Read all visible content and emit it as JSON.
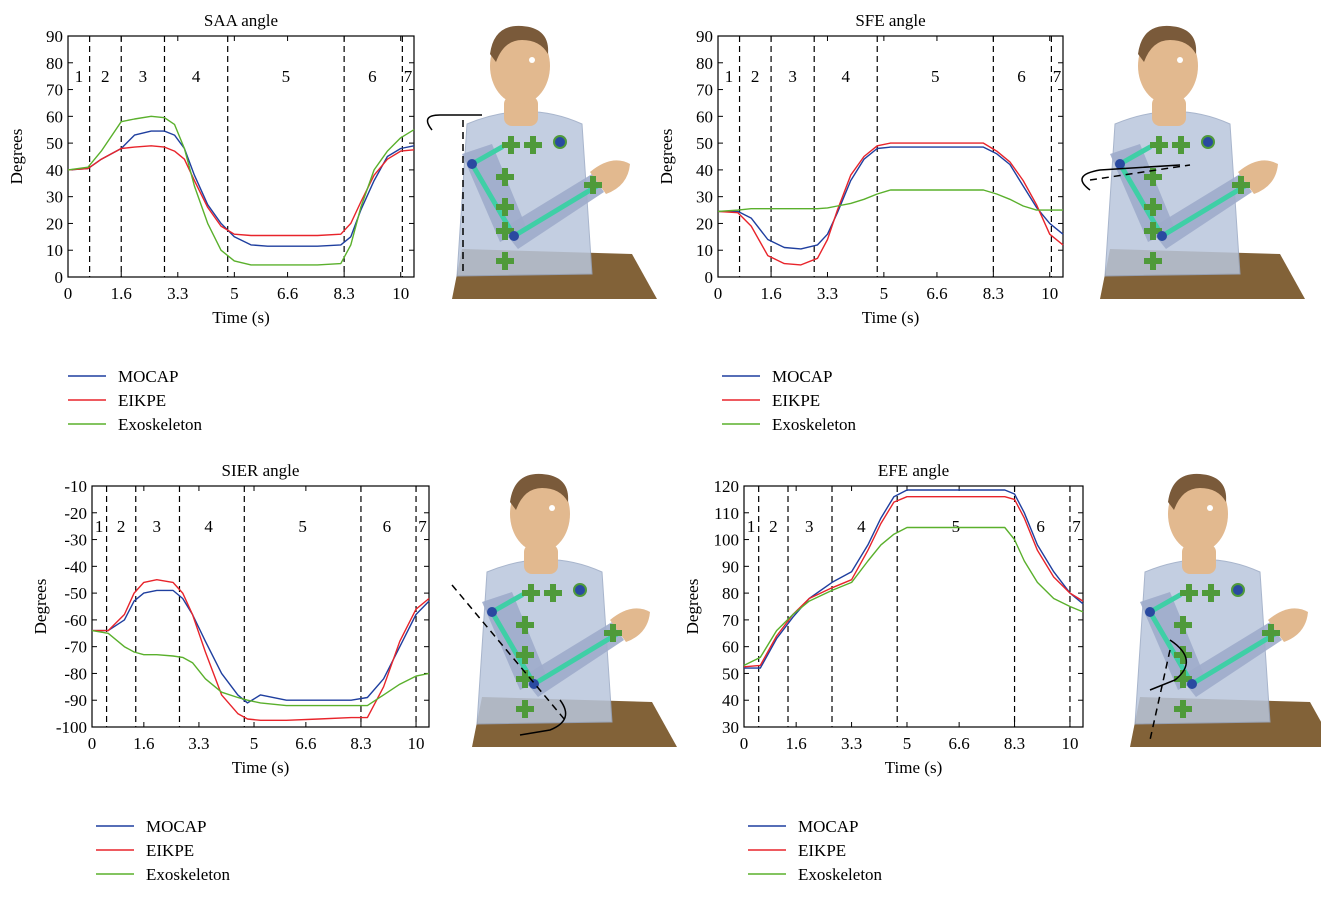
{
  "colors": {
    "mocap": "#1f3f9f",
    "eikpe": "#e8242b",
    "exoskeleton": "#5ab02c",
    "skin": "#e2b98f",
    "hair": "#7a5a3a",
    "torso": "#b9c6dc",
    "marker": "#4f9a3a",
    "link": "#3fcfa6",
    "seat": "#7b5a2d"
  },
  "chart_data": [
    {
      "type": "line",
      "title": "SAA angle",
      "xlabel": "Time (s)",
      "ylabel": "Degrees",
      "xlim": [
        0,
        10.4
      ],
      "ylim": [
        0,
        90
      ],
      "xticks": [
        0,
        1.6,
        3.3,
        5,
        6.6,
        8.3,
        10
      ],
      "xtick_labels": [
        "0",
        "1.6",
        "3.3",
        "5",
        "6.6",
        "8.3",
        "10"
      ],
      "yticks": [
        0,
        10,
        20,
        30,
        40,
        50,
        60,
        70,
        80,
        90
      ],
      "phase_lines": [
        0.65,
        1.6,
        2.9,
        4.8,
        8.3,
        10.05
      ],
      "phase_labels": [
        {
          "text": "1",
          "x": 0.33
        },
        {
          "text": "2",
          "x": 1.12
        },
        {
          "text": "3",
          "x": 2.25
        },
        {
          "text": "4",
          "x": 3.85
        },
        {
          "text": "5",
          "x": 6.55
        },
        {
          "text": "6",
          "x": 9.15
        },
        {
          "text": "7",
          "x": 10.22
        }
      ],
      "series": [
        {
          "name": "MOCAP",
          "x": [
            0,
            0.6,
            1.0,
            1.6,
            2.0,
            2.5,
            2.9,
            3.2,
            3.5,
            3.8,
            4.2,
            4.6,
            5.0,
            5.5,
            6.0,
            6.6,
            7.5,
            8.2,
            8.5,
            8.8,
            9.2,
            9.6,
            10.0,
            10.4
          ],
          "y": [
            40,
            40.5,
            44,
            48,
            53,
            54.5,
            54.5,
            53,
            48,
            38,
            27,
            20,
            15,
            12,
            11.5,
            11.5,
            11.5,
            12,
            15,
            25,
            36,
            45,
            48,
            49
          ]
        },
        {
          "name": "EIKPE",
          "x": [
            0,
            0.6,
            1.0,
            1.6,
            2.0,
            2.5,
            2.9,
            3.2,
            3.5,
            3.8,
            4.2,
            4.6,
            5.0,
            5.5,
            6.0,
            6.6,
            7.5,
            8.2,
            8.5,
            8.8,
            9.2,
            9.6,
            10.0,
            10.4
          ],
          "y": [
            40,
            40.5,
            44,
            48,
            48.5,
            49,
            48.5,
            47,
            44,
            36,
            26,
            19,
            16,
            15.5,
            15.5,
            15.5,
            15.5,
            16,
            20,
            28,
            38,
            44,
            47,
            47.5
          ]
        },
        {
          "name": "Exoskeleton",
          "x": [
            0,
            0.6,
            1.0,
            1.6,
            2.0,
            2.5,
            2.9,
            3.2,
            3.5,
            3.8,
            4.2,
            4.6,
            5.0,
            5.5,
            6.0,
            6.6,
            7.5,
            8.2,
            8.5,
            8.8,
            9.2,
            9.6,
            10.0,
            10.4
          ],
          "y": [
            40,
            41,
            47,
            58,
            59,
            60,
            59.5,
            57,
            48,
            34,
            20,
            10,
            6,
            4.5,
            4.5,
            4.5,
            4.5,
            5,
            12,
            26,
            40,
            47,
            52,
            55
          ]
        }
      ]
    },
    {
      "type": "line",
      "title": "SFE angle",
      "xlabel": "Time (s)",
      "ylabel": "Degrees",
      "xlim": [
        0,
        10.4
      ],
      "ylim": [
        0,
        90
      ],
      "xticks": [
        0,
        1.6,
        3.3,
        5,
        6.6,
        8.3,
        10
      ],
      "xtick_labels": [
        "0",
        "1.6",
        "3.3",
        "5",
        "6.6",
        "8.3",
        "10"
      ],
      "yticks": [
        0,
        10,
        20,
        30,
        40,
        50,
        60,
        70,
        80,
        90
      ],
      "phase_lines": [
        0.65,
        1.6,
        2.9,
        4.8,
        8.3,
        10.05
      ],
      "phase_labels": [
        {
          "text": "1",
          "x": 0.33
        },
        {
          "text": "2",
          "x": 1.12
        },
        {
          "text": "3",
          "x": 2.25
        },
        {
          "text": "4",
          "x": 3.85
        },
        {
          "text": "5",
          "x": 6.55
        },
        {
          "text": "6",
          "x": 9.15
        },
        {
          "text": "7",
          "x": 10.22
        }
      ],
      "series": [
        {
          "name": "MOCAP",
          "x": [
            0,
            0.6,
            1.0,
            1.5,
            2.0,
            2.5,
            3.0,
            3.3,
            3.6,
            4.0,
            4.4,
            4.8,
            5.2,
            6.0,
            7.0,
            8.0,
            8.4,
            8.8,
            9.2,
            9.6,
            10.0,
            10.4
          ],
          "y": [
            24.5,
            24.5,
            22,
            14,
            11,
            10.5,
            12,
            16,
            24,
            36,
            44,
            48,
            48.5,
            48.5,
            48.5,
            48.5,
            46,
            42,
            34,
            26,
            20,
            16
          ]
        },
        {
          "name": "EIKPE",
          "x": [
            0,
            0.6,
            1.0,
            1.5,
            2.0,
            2.5,
            3.0,
            3.3,
            3.6,
            4.0,
            4.4,
            4.8,
            5.2,
            6.0,
            7.0,
            8.0,
            8.4,
            8.8,
            9.2,
            9.6,
            10.0,
            10.4
          ],
          "y": [
            24.5,
            24,
            19,
            8,
            5,
            4.5,
            7,
            14,
            25,
            38,
            45,
            49,
            50,
            50,
            50,
            50,
            47,
            43,
            36,
            27,
            16,
            12
          ]
        },
        {
          "name": "Exoskeleton",
          "x": [
            0,
            0.6,
            1.0,
            1.5,
            2.0,
            2.5,
            3.0,
            3.3,
            3.6,
            4.0,
            4.4,
            4.8,
            5.2,
            6.0,
            7.0,
            8.0,
            8.4,
            8.8,
            9.2,
            9.6,
            10.0,
            10.4
          ],
          "y": [
            24.5,
            25,
            25.5,
            25.5,
            25.5,
            25.5,
            25.5,
            25.8,
            26.5,
            27.5,
            29,
            31,
            32.5,
            32.5,
            32.5,
            32.5,
            31,
            29,
            26.5,
            25,
            25,
            25
          ]
        }
      ]
    },
    {
      "type": "line",
      "title": "SIER angle",
      "xlabel": "Time (s)",
      "ylabel": "Degrees",
      "xlim": [
        0,
        10.4
      ],
      "ylim": [
        -100,
        -10
      ],
      "xticks": [
        0,
        1.6,
        3.3,
        5,
        6.6,
        8.3,
        10
      ],
      "xtick_labels": [
        "0",
        "1.6",
        "3.3",
        "5",
        "6.6",
        "8.3",
        "10"
      ],
      "yticks": [
        -100,
        -90,
        -80,
        -70,
        -60,
        -50,
        -40,
        -30,
        -20,
        -10
      ],
      "phase_lines": [
        0.45,
        1.35,
        2.7,
        4.7,
        8.3,
        10.0
      ],
      "phase_labels": [
        {
          "text": "1",
          "x": 0.22
        },
        {
          "text": "2",
          "x": 0.9
        },
        {
          "text": "3",
          "x": 2.0
        },
        {
          "text": "4",
          "x": 3.6
        },
        {
          "text": "5",
          "x": 6.5
        },
        {
          "text": "6",
          "x": 9.1
        },
        {
          "text": "7",
          "x": 10.2
        }
      ],
      "series": [
        {
          "name": "MOCAP",
          "x": [
            0,
            0.5,
            1.0,
            1.3,
            1.6,
            2.0,
            2.5,
            2.8,
            3.1,
            3.5,
            4.0,
            4.5,
            4.8,
            5.2,
            6.0,
            7.0,
            8.0,
            8.5,
            9.0,
            9.5,
            10.0,
            10.4
          ],
          "y": [
            -64,
            -64,
            -60,
            -53,
            -50,
            -49,
            -49,
            -52,
            -58,
            -68,
            -80,
            -88,
            -91,
            -88,
            -90,
            -90,
            -90,
            -89,
            -82,
            -70,
            -58,
            -53
          ]
        },
        {
          "name": "EIKPE",
          "x": [
            0,
            0.5,
            1.0,
            1.3,
            1.6,
            2.0,
            2.5,
            2.8,
            3.1,
            3.5,
            4.0,
            4.5,
            4.8,
            5.2,
            6.0,
            7.0,
            8.0,
            8.5,
            9.0,
            9.5,
            10.0,
            10.4
          ],
          "y": [
            -64,
            -64,
            -58,
            -50,
            -46,
            -45,
            -46,
            -50,
            -58,
            -72,
            -88,
            -95,
            -97,
            -97.5,
            -97.5,
            -97,
            -96.5,
            -96.5,
            -85,
            -68,
            -56,
            -52
          ]
        },
        {
          "name": "Exoskeleton",
          "x": [
            0,
            0.5,
            1.0,
            1.3,
            1.6,
            2.0,
            2.5,
            2.8,
            3.1,
            3.5,
            4.0,
            4.5,
            4.8,
            5.2,
            6.0,
            7.0,
            8.0,
            8.5,
            9.0,
            9.5,
            10.0,
            10.4
          ],
          "y": [
            -64,
            -65,
            -70,
            -72,
            -73,
            -73,
            -73.5,
            -74,
            -76,
            -82,
            -87,
            -89,
            -90,
            -91,
            -92,
            -92,
            -92,
            -92,
            -88,
            -84,
            -81,
            -80
          ]
        }
      ]
    },
    {
      "type": "line",
      "title": "EFE angle",
      "xlabel": "Time (s)",
      "ylabel": "Degrees",
      "xlim": [
        0,
        10.4
      ],
      "ylim": [
        30,
        120
      ],
      "xticks": [
        0,
        1.6,
        3.3,
        5,
        6.6,
        8.3,
        10
      ],
      "xtick_labels": [
        "0",
        "1.6",
        "3.3",
        "5",
        "6.6",
        "8.3",
        "10"
      ],
      "yticks": [
        30,
        40,
        50,
        60,
        70,
        80,
        90,
        100,
        110,
        120
      ],
      "phase_lines": [
        0.45,
        1.35,
        2.7,
        4.7,
        8.3,
        10.0
      ],
      "phase_labels": [
        {
          "text": "1",
          "x": 0.22
        },
        {
          "text": "2",
          "x": 0.9
        },
        {
          "text": "3",
          "x": 2.0
        },
        {
          "text": "4",
          "x": 3.6
        },
        {
          "text": "5",
          "x": 6.5
        },
        {
          "text": "6",
          "x": 9.1
        },
        {
          "text": "7",
          "x": 10.2
        }
      ],
      "series": [
        {
          "name": "MOCAP",
          "x": [
            0,
            0.5,
            1.0,
            1.5,
            2.0,
            2.7,
            3.3,
            3.8,
            4.2,
            4.6,
            5.0,
            6.0,
            7.0,
            8.0,
            8.3,
            8.6,
            9.0,
            9.5,
            10.0,
            10.4
          ],
          "y": [
            52,
            52,
            63,
            71,
            78,
            84,
            88,
            98,
            108,
            116,
            118.5,
            118.5,
            118.5,
            118.5,
            117,
            110,
            98,
            88,
            80,
            76
          ]
        },
        {
          "name": "EIKPE",
          "x": [
            0,
            0.5,
            1.0,
            1.5,
            2.0,
            2.7,
            3.3,
            3.8,
            4.2,
            4.6,
            5.0,
            6.0,
            7.0,
            8.0,
            8.3,
            8.6,
            9.0,
            9.5,
            10.0,
            10.4
          ],
          "y": [
            52.5,
            53,
            64,
            72,
            78,
            82,
            85,
            96,
            106,
            114,
            116,
            116,
            116,
            116,
            115,
            108,
            96,
            86,
            80,
            77
          ]
        },
        {
          "name": "Exoskeleton",
          "x": [
            0,
            0.5,
            1.0,
            1.5,
            2.0,
            2.7,
            3.3,
            3.8,
            4.2,
            4.6,
            5.0,
            6.0,
            7.0,
            8.0,
            8.3,
            8.6,
            9.0,
            9.5,
            10.0,
            10.4
          ],
          "y": [
            53,
            56,
            66,
            72,
            77,
            81,
            84,
            92,
            98,
            102,
            104.5,
            104.5,
            104.5,
            104.5,
            100,
            92,
            84,
            78,
            75,
            73
          ]
        }
      ]
    }
  ],
  "legends": [
    {
      "items": [
        "MOCAP",
        "EIKPE",
        "Exoskeleton"
      ]
    },
    {
      "items": [
        "MOCAP",
        "EIKPE",
        "Exoskeleton"
      ]
    },
    {
      "items": [
        "MOCAP",
        "EIKPE",
        "Exoskeleton"
      ]
    },
    {
      "items": [
        "MOCAP",
        "EIKPE",
        "Exoskeleton"
      ]
    }
  ],
  "illustrations": [
    {
      "icon": "humanoid-arm-model-icon"
    },
    {
      "icon": "humanoid-arm-model-icon"
    },
    {
      "icon": "humanoid-arm-model-icon"
    },
    {
      "icon": "humanoid-arm-model-icon"
    }
  ]
}
